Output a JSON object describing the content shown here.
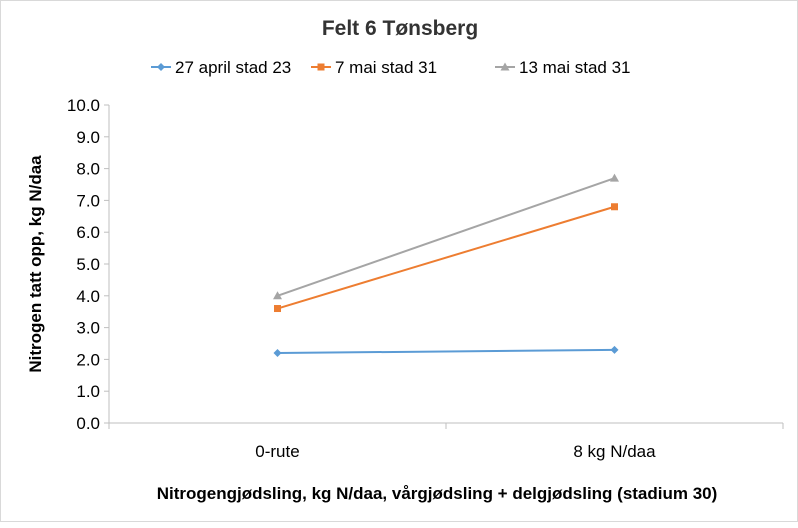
{
  "chart_data": {
    "type": "line",
    "title": "Felt 6 Tønsberg",
    "xlabel": "Nitrogengjødsling, kg N/daa, vårgjødsling + delgjødsling (stadium 30)",
    "ylabel": "Nitrogen tatt opp, kg N/daa",
    "categories": [
      "0-rute",
      "8 kg N/daa"
    ],
    "ylim": [
      0,
      10
    ],
    "ytick_step": 1,
    "ytick_labels": [
      "0.0",
      "1.0",
      "2.0",
      "3.0",
      "4.0",
      "5.0",
      "6.0",
      "7.0",
      "8.0",
      "9.0",
      "10.0"
    ],
    "grid": false,
    "legend_position": "top",
    "series": [
      {
        "name": "27 april stad 23",
        "values": [
          2.2,
          2.3
        ],
        "color": "#5B9BD5",
        "marker": "diamond"
      },
      {
        "name": "7 mai stad 31",
        "values": [
          3.6,
          6.8
        ],
        "color": "#ED7D31",
        "marker": "square"
      },
      {
        "name": "13 mai stad 31",
        "values": [
          4.0,
          7.7
        ],
        "color": "#A5A5A5",
        "marker": "triangle"
      }
    ]
  }
}
